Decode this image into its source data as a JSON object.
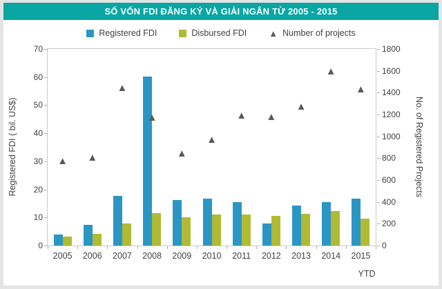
{
  "title": "SỐ VỐN FDI ĐĂNG KÝ VÀ GIẢI NGÂN TỪ 2005 - 2015",
  "colors": {
    "banner": "#0aa6a4",
    "registered": "#2b96c4",
    "disbursed": "#b0ba33",
    "projects": "#58595b",
    "axis_text": "#404040"
  },
  "legend": [
    {
      "label": "Registered FDI",
      "marker": "square",
      "color": "#2b96c4"
    },
    {
      "label": "Disbursed FDI",
      "marker": "square",
      "color": "#b0ba33"
    },
    {
      "label": "Number of projects",
      "marker": "triangle",
      "color": "#58595b"
    }
  ],
  "chart_data": {
    "type": "bar",
    "categories": [
      "2005",
      "2006",
      "2007",
      "2008",
      "2009",
      "2010",
      "2011",
      "2012",
      "2013",
      "2014",
      "2015"
    ],
    "series": [
      {
        "name": "Registered FDI",
        "type": "bar",
        "axis": "left",
        "color": "#2b96c4",
        "values": [
          3.9,
          7.3,
          17.8,
          60.3,
          16.1,
          16.8,
          15.5,
          7.8,
          14.2,
          15.5,
          16.8
        ]
      },
      {
        "name": "Disbursed FDI",
        "type": "bar",
        "axis": "left",
        "color": "#b0ba33",
        "values": [
          3.2,
          4.1,
          7.8,
          11.5,
          10.0,
          11.0,
          11.0,
          10.5,
          11.2,
          12.3,
          9.5
        ]
      },
      {
        "name": "Number of projects",
        "type": "scatter",
        "marker": "triangle",
        "axis": "right",
        "color": "#58595b",
        "values": [
          770,
          800,
          1440,
          1170,
          840,
          965,
          1185,
          1175,
          1270,
          1590,
          1430
        ]
      }
    ],
    "left_axis": {
      "label": "Registered FDI ( bil. US$)",
      "min": 0,
      "max": 70,
      "step": 10
    },
    "right_axis": {
      "label": "No. of Registered Projects",
      "min": 0,
      "max": 1800,
      "step": 200
    },
    "x_note": "YTD",
    "grid": false,
    "legend_position": "top"
  }
}
